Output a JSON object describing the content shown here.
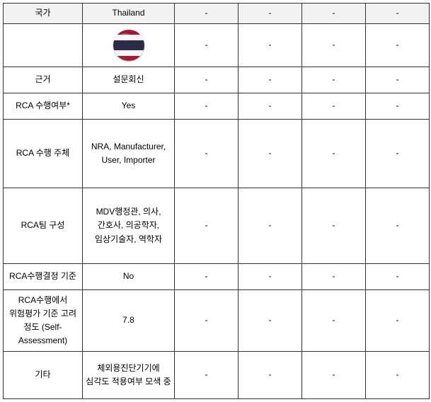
{
  "table": {
    "border_color": "#333333",
    "header_bg": "#f2f2f2",
    "font_size": 12,
    "columns": 6,
    "flag": {
      "country": "Thailand",
      "stripe_colors": [
        "#a51931",
        "#f4f5f8",
        "#2d2a4a",
        "#f4f5f8",
        "#a51931"
      ]
    },
    "header": {
      "c0": "국가",
      "c1": "Thailand",
      "c2": "-",
      "c3": "-",
      "c4": "-",
      "c5": "-"
    },
    "rows": [
      {
        "label": "근거",
        "v": [
          "설문회신",
          "-",
          "-",
          "-",
          "-"
        ]
      },
      {
        "label": "RCA 수행여부*",
        "v": [
          "Yes",
          "-",
          "-",
          "-",
          "-"
        ]
      },
      {
        "label": "RCA 수행 주체",
        "v": [
          "NRA, Manufacturer, User, Importer",
          "-",
          "-",
          "-",
          "-"
        ]
      },
      {
        "label": "RCA팀 구성",
        "v": [
          "MDV행정관, 의사, 간호사, 의공학자, 임상기술자, 역학자",
          "-",
          "-",
          "-",
          "-"
        ]
      },
      {
        "label": "RCA수행결정 기준",
        "v": [
          "No",
          "-",
          "-",
          "-",
          "-"
        ]
      },
      {
        "label": "RCA수행에서 위험평가 기준 고려 정도 (Self-Assessment)",
        "v": [
          "7.8",
          "-",
          "-",
          "-",
          "-"
        ]
      },
      {
        "label": "기타",
        "v": [
          "체외용진단기기에 심각도 적용여부 모색 중",
          "-",
          "-",
          "-",
          "-"
        ]
      }
    ]
  }
}
